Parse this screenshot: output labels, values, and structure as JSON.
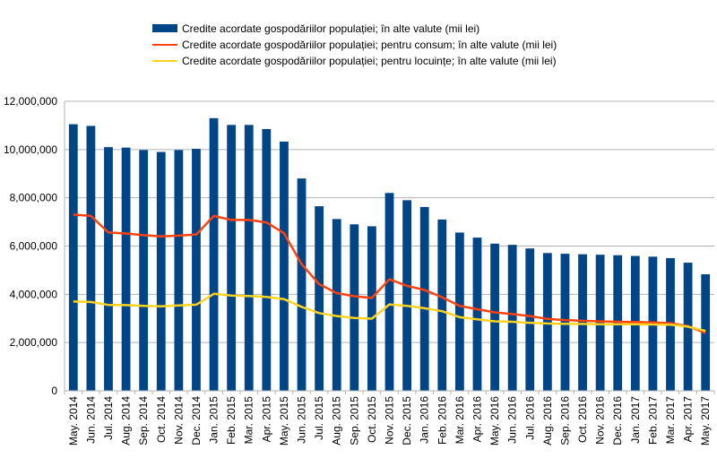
{
  "chart_data": {
    "type": "bar",
    "title": "",
    "xlabel": "",
    "ylabel": "",
    "ylim": [
      0,
      12000000
    ],
    "y_ticks": [
      0,
      2000000,
      4000000,
      6000000,
      8000000,
      10000000,
      12000000
    ],
    "y_tick_labels": [
      "0",
      "2,000,000",
      "4,000,000",
      "6,000,000",
      "8,000,000",
      "10,000,000",
      "12,000,000"
    ],
    "grid": true,
    "legend_position": "top",
    "categories": [
      "May. 2014",
      "Jun. 2014",
      "Jul. 2014",
      "Aug. 2014",
      "Sep. 2014",
      "Oct. 2014",
      "Nov. 2014",
      "Dec. 2014",
      "Jan. 2015",
      "Feb. 2015",
      "Mar. 2015",
      "Apr. 2015",
      "May. 2015",
      "Jun. 2015",
      "Jul. 2015",
      "Aug. 2015",
      "Sep. 2015",
      "Oct. 2015",
      "Nov. 2015",
      "Dec. 2015",
      "Jan. 2016",
      "Feb. 2016",
      "Mar. 2016",
      "Apr. 2016",
      "May. 2016",
      "Jun. 2016",
      "Jul. 2016",
      "Aug. 2016",
      "Sep. 2016",
      "Oct. 2016",
      "Nov. 2016",
      "Dec. 2016",
      "Jan. 2017",
      "Feb. 2017",
      "Mar. 2017",
      "Apr. 2017",
      "May. 2017"
    ],
    "series": [
      {
        "name": "Credite acordate gospodăriilor populației; în alte valute (mii lei)",
        "kind": "bar",
        "color": "#004586",
        "values": [
          11050000,
          10980000,
          10100000,
          10080000,
          9980000,
          9900000,
          9980000,
          10030000,
          11300000,
          11020000,
          11020000,
          10850000,
          10330000,
          8800000,
          7650000,
          7120000,
          6900000,
          6820000,
          8200000,
          7900000,
          7620000,
          7100000,
          6560000,
          6350000,
          6100000,
          6050000,
          5900000,
          5710000,
          5680000,
          5660000,
          5640000,
          5620000,
          5590000,
          5560000,
          5500000,
          5310000,
          4830000
        ]
      },
      {
        "name": "Credite acordate gospodăriilor populației; pentru consum; în alte valute (mii lei)",
        "kind": "line",
        "color": "#ff420e",
        "values": [
          7300000,
          7250000,
          6560000,
          6520000,
          6450000,
          6400000,
          6430000,
          6480000,
          7250000,
          7080000,
          7080000,
          6980000,
          6530000,
          5250000,
          4420000,
          4050000,
          3920000,
          3850000,
          4620000,
          4350000,
          4180000,
          3880000,
          3520000,
          3380000,
          3250000,
          3180000,
          3100000,
          2980000,
          2930000,
          2900000,
          2880000,
          2860000,
          2850000,
          2830000,
          2800000,
          2680000,
          2400000
        ]
      },
      {
        "name": "Credite acordate gospodăriilor populației; pentru locuințe; în alte valute (mii lei)",
        "kind": "line",
        "color": "#ffd320",
        "values": [
          3700000,
          3680000,
          3560000,
          3550000,
          3520000,
          3500000,
          3540000,
          3570000,
          4020000,
          3950000,
          3930000,
          3890000,
          3800000,
          3480000,
          3220000,
          3100000,
          3020000,
          2990000,
          3580000,
          3520000,
          3420000,
          3300000,
          3050000,
          2960000,
          2880000,
          2860000,
          2820000,
          2790000,
          2780000,
          2770000,
          2760000,
          2760000,
          2760000,
          2750000,
          2740000,
          2660000,
          2480000
        ]
      }
    ]
  }
}
